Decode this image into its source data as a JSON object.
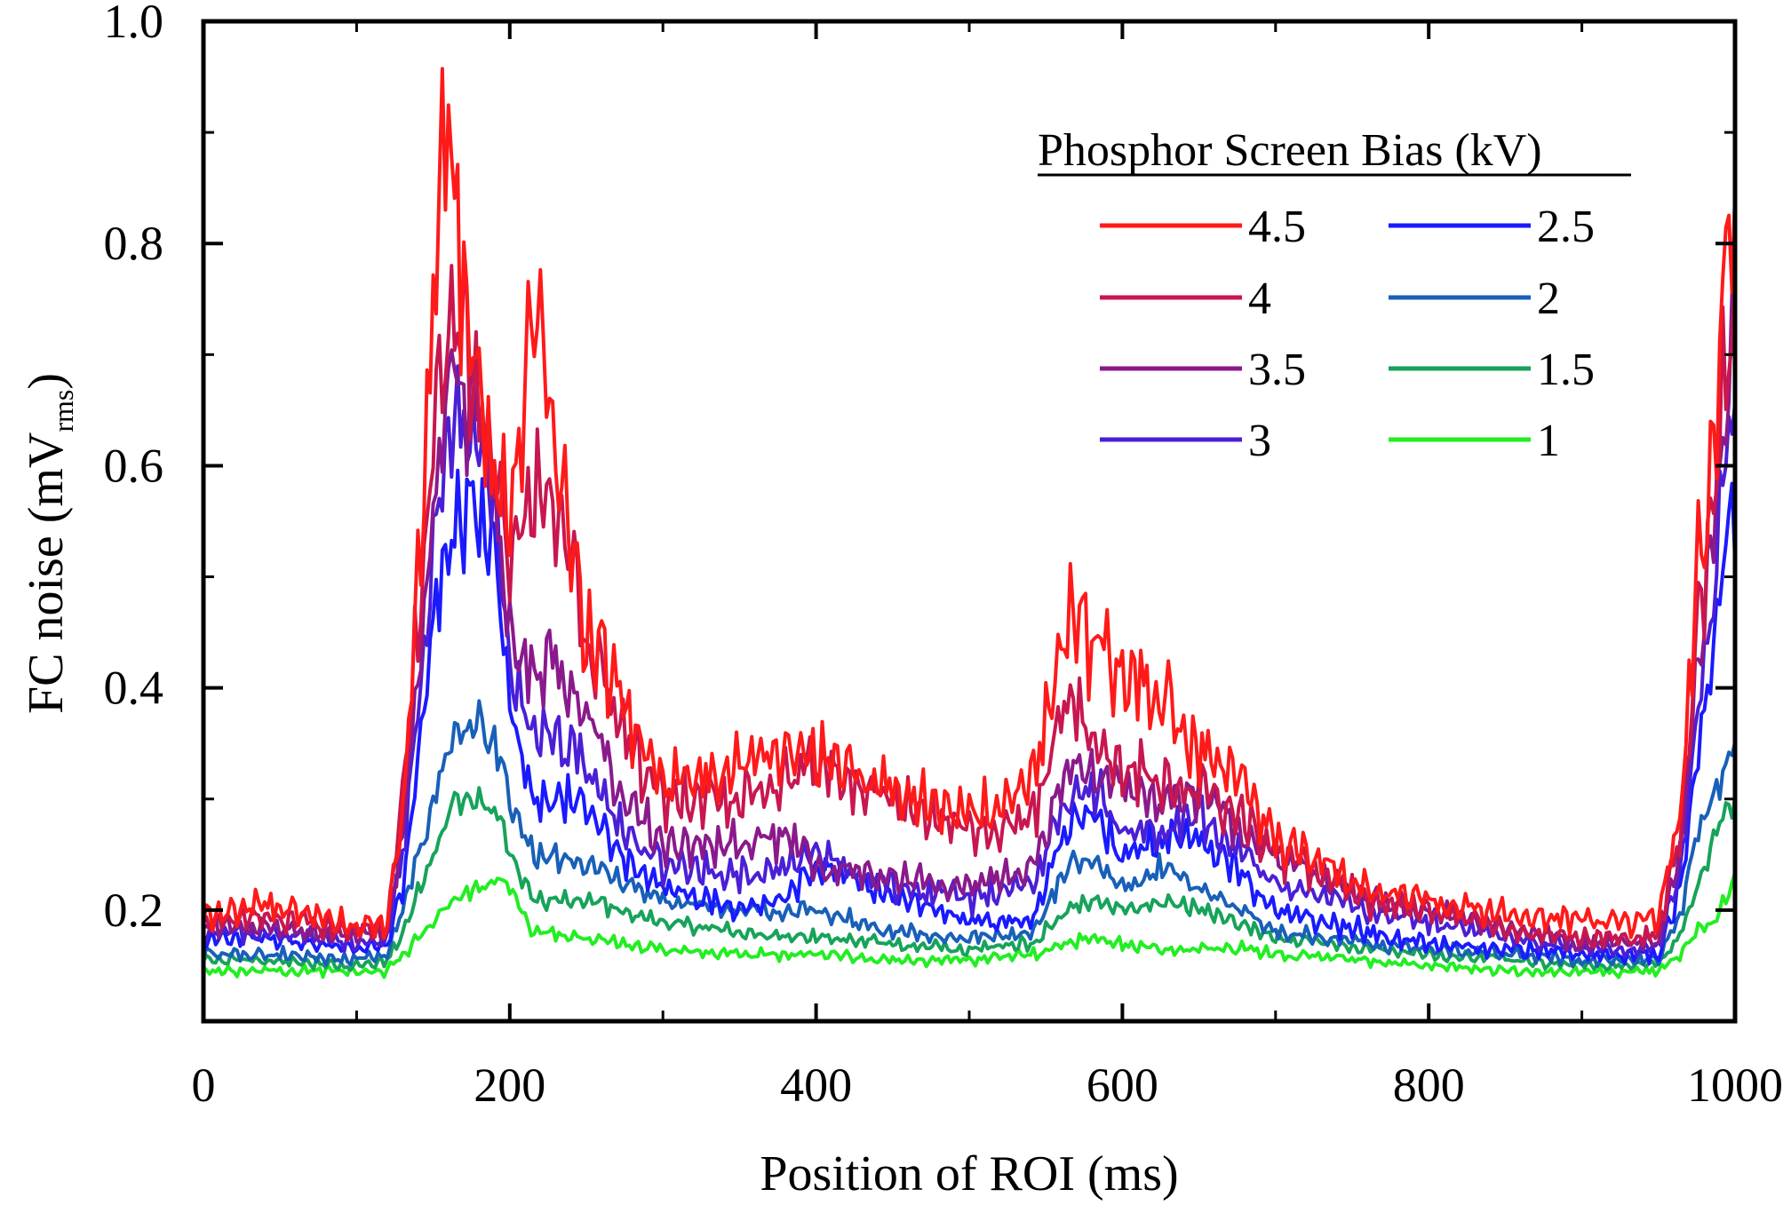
{
  "chart_data": {
    "type": "line",
    "title": "",
    "xlabel": "Position of ROI (ms)",
    "ylabel": {
      "main": "FC noise (mV",
      "sub": "rms",
      "close": ")"
    },
    "xlim": [
      0,
      1000
    ],
    "ylim": [
      0.1,
      1.0
    ],
    "x_ticks": [
      0,
      200,
      400,
      600,
      800,
      1000
    ],
    "x_tick_labels": [
      "0",
      "200",
      "400",
      "600",
      "800",
      "1000"
    ],
    "y_ticks": [
      0.2,
      0.4,
      0.6,
      0.8,
      1.0
    ],
    "y_tick_labels": [
      "0.2",
      "0.4",
      "0.6",
      "0.8",
      "1.0"
    ],
    "grid": false,
    "legend": {
      "title": "Phosphor Screen Bias (kV)",
      "placement": "top-right",
      "columns": 2
    },
    "series": [
      {
        "name": "4.5",
        "color": "#ff1a1a",
        "amp": 1.0,
        "base": [
          [
            0,
            0.195
          ],
          [
            40,
            0.205
          ],
          [
            100,
            0.185
          ],
          [
            120,
            0.19
          ],
          [
            130,
            0.28
          ],
          [
            145,
            0.62
          ],
          [
            158,
            0.93
          ],
          [
            172,
            0.74
          ],
          [
            185,
            0.6
          ],
          [
            200,
            0.54
          ],
          [
            215,
            0.77
          ],
          [
            230,
            0.6
          ],
          [
            250,
            0.45
          ],
          [
            270,
            0.4
          ],
          [
            300,
            0.31
          ],
          [
            350,
            0.33
          ],
          [
            400,
            0.34
          ],
          [
            450,
            0.31
          ],
          [
            500,
            0.28
          ],
          [
            540,
            0.31
          ],
          [
            565,
            0.46
          ],
          [
            580,
            0.45
          ],
          [
            600,
            0.42
          ],
          [
            625,
            0.4
          ],
          [
            650,
            0.34
          ],
          [
            680,
            0.32
          ],
          [
            700,
            0.26
          ],
          [
            760,
            0.22
          ],
          [
            800,
            0.21
          ],
          [
            860,
            0.195
          ],
          [
            900,
            0.19
          ],
          [
            950,
            0.19
          ],
          [
            965,
            0.3
          ],
          [
            975,
            0.5
          ],
          [
            985,
            0.6
          ],
          [
            995,
            0.8
          ],
          [
            1000,
            0.8
          ]
        ]
      },
      {
        "name": "4",
        "color": "#c8174f",
        "amp": 0.9,
        "base": [
          [
            0,
            0.19
          ],
          [
            40,
            0.195
          ],
          [
            100,
            0.18
          ],
          [
            120,
            0.19
          ],
          [
            130,
            0.3
          ],
          [
            150,
            0.62
          ],
          [
            160,
            0.72
          ],
          [
            172,
            0.72
          ],
          [
            185,
            0.62
          ],
          [
            200,
            0.52
          ],
          [
            215,
            0.58
          ],
          [
            230,
            0.56
          ],
          [
            250,
            0.45
          ],
          [
            270,
            0.37
          ],
          [
            300,
            0.3
          ],
          [
            350,
            0.3
          ],
          [
            400,
            0.33
          ],
          [
            450,
            0.3
          ],
          [
            500,
            0.27
          ],
          [
            540,
            0.28
          ],
          [
            565,
            0.39
          ],
          [
            580,
            0.36
          ],
          [
            600,
            0.33
          ],
          [
            625,
            0.32
          ],
          [
            650,
            0.31
          ],
          [
            680,
            0.28
          ],
          [
            700,
            0.25
          ],
          [
            760,
            0.21
          ],
          [
            800,
            0.2
          ],
          [
            860,
            0.18
          ],
          [
            900,
            0.175
          ],
          [
            950,
            0.175
          ],
          [
            965,
            0.28
          ],
          [
            975,
            0.45
          ],
          [
            985,
            0.55
          ],
          [
            995,
            0.7
          ],
          [
            1000,
            0.72
          ]
        ]
      },
      {
        "name": "3.5",
        "color": "#8a1a8c",
        "amp": 0.85,
        "base": [
          [
            0,
            0.185
          ],
          [
            40,
            0.185
          ],
          [
            100,
            0.175
          ],
          [
            120,
            0.18
          ],
          [
            130,
            0.27
          ],
          [
            150,
            0.56
          ],
          [
            162,
            0.68
          ],
          [
            175,
            0.66
          ],
          [
            190,
            0.58
          ],
          [
            200,
            0.45
          ],
          [
            215,
            0.42
          ],
          [
            230,
            0.42
          ],
          [
            250,
            0.38
          ],
          [
            270,
            0.31
          ],
          [
            300,
            0.26
          ],
          [
            350,
            0.26
          ],
          [
            380,
            0.27
          ],
          [
            400,
            0.24
          ],
          [
            450,
            0.23
          ],
          [
            500,
            0.22
          ],
          [
            540,
            0.24
          ],
          [
            565,
            0.33
          ],
          [
            580,
            0.33
          ],
          [
            600,
            0.31
          ],
          [
            625,
            0.3
          ],
          [
            650,
            0.31
          ],
          [
            680,
            0.27
          ],
          [
            700,
            0.25
          ],
          [
            760,
            0.21
          ],
          [
            800,
            0.2
          ],
          [
            860,
            0.18
          ],
          [
            900,
            0.17
          ],
          [
            950,
            0.17
          ],
          [
            965,
            0.26
          ],
          [
            975,
            0.42
          ],
          [
            985,
            0.52
          ],
          [
            995,
            0.68
          ],
          [
            1000,
            0.7
          ]
        ]
      },
      {
        "name": "3",
        "color": "#4a1fd6",
        "amp": 0.8,
        "base": [
          [
            0,
            0.18
          ],
          [
            40,
            0.18
          ],
          [
            100,
            0.17
          ],
          [
            120,
            0.175
          ],
          [
            130,
            0.25
          ],
          [
            150,
            0.52
          ],
          [
            162,
            0.64
          ],
          [
            175,
            0.63
          ],
          [
            190,
            0.56
          ],
          [
            200,
            0.42
          ],
          [
            215,
            0.36
          ],
          [
            230,
            0.36
          ],
          [
            250,
            0.33
          ],
          [
            270,
            0.28
          ],
          [
            300,
            0.24
          ],
          [
            350,
            0.23
          ],
          [
            380,
            0.24
          ],
          [
            400,
            0.25
          ],
          [
            450,
            0.22
          ],
          [
            500,
            0.21
          ],
          [
            540,
            0.22
          ],
          [
            565,
            0.3
          ],
          [
            580,
            0.31
          ],
          [
            600,
            0.27
          ],
          [
            625,
            0.27
          ],
          [
            645,
            0.29
          ],
          [
            680,
            0.25
          ],
          [
            700,
            0.22
          ],
          [
            760,
            0.2
          ],
          [
            800,
            0.19
          ],
          [
            860,
            0.175
          ],
          [
            900,
            0.165
          ],
          [
            950,
            0.165
          ],
          [
            965,
            0.24
          ],
          [
            975,
            0.38
          ],
          [
            985,
            0.48
          ],
          [
            995,
            0.62
          ],
          [
            1000,
            0.64
          ]
        ]
      },
      {
        "name": "2.5",
        "color": "#1a1aff",
        "amp": 0.75,
        "base": [
          [
            0,
            0.175
          ],
          [
            40,
            0.175
          ],
          [
            100,
            0.165
          ],
          [
            120,
            0.17
          ],
          [
            130,
            0.22
          ],
          [
            150,
            0.45
          ],
          [
            162,
            0.55
          ],
          [
            175,
            0.56
          ],
          [
            190,
            0.52
          ],
          [
            200,
            0.38
          ],
          [
            215,
            0.3
          ],
          [
            230,
            0.3
          ],
          [
            250,
            0.3
          ],
          [
            270,
            0.25
          ],
          [
            300,
            0.22
          ],
          [
            350,
            0.2
          ],
          [
            380,
            0.21
          ],
          [
            400,
            0.24
          ],
          [
            450,
            0.21
          ],
          [
            500,
            0.19
          ],
          [
            540,
            0.19
          ],
          [
            565,
            0.28
          ],
          [
            580,
            0.29
          ],
          [
            600,
            0.25
          ],
          [
            625,
            0.26
          ],
          [
            645,
            0.27
          ],
          [
            680,
            0.23
          ],
          [
            700,
            0.2
          ],
          [
            760,
            0.18
          ],
          [
            800,
            0.17
          ],
          [
            860,
            0.165
          ],
          [
            900,
            0.16
          ],
          [
            950,
            0.16
          ],
          [
            965,
            0.22
          ],
          [
            975,
            0.33
          ],
          [
            985,
            0.43
          ],
          [
            995,
            0.55
          ],
          [
            1000,
            0.56
          ]
        ]
      },
      {
        "name": "2",
        "color": "#1860b8",
        "amp": 0.5,
        "base": [
          [
            0,
            0.16
          ],
          [
            40,
            0.16
          ],
          [
            100,
            0.155
          ],
          [
            120,
            0.16
          ],
          [
            130,
            0.2
          ],
          [
            150,
            0.3
          ],
          [
            165,
            0.36
          ],
          [
            180,
            0.37
          ],
          [
            195,
            0.34
          ],
          [
            200,
            0.3
          ],
          [
            215,
            0.25
          ],
          [
            250,
            0.24
          ],
          [
            300,
            0.21
          ],
          [
            350,
            0.2
          ],
          [
            400,
            0.2
          ],
          [
            450,
            0.18
          ],
          [
            500,
            0.175
          ],
          [
            540,
            0.18
          ],
          [
            565,
            0.24
          ],
          [
            580,
            0.25
          ],
          [
            600,
            0.22
          ],
          [
            630,
            0.24
          ],
          [
            650,
            0.22
          ],
          [
            680,
            0.2
          ],
          [
            700,
            0.18
          ],
          [
            760,
            0.17
          ],
          [
            800,
            0.165
          ],
          [
            860,
            0.16
          ],
          [
            900,
            0.155
          ],
          [
            950,
            0.155
          ],
          [
            965,
            0.2
          ],
          [
            975,
            0.27
          ],
          [
            985,
            0.3
          ],
          [
            995,
            0.33
          ],
          [
            1000,
            0.35
          ]
        ]
      },
      {
        "name": "1.5",
        "color": "#17a35a",
        "amp": 0.38,
        "base": [
          [
            0,
            0.155
          ],
          [
            40,
            0.155
          ],
          [
            100,
            0.15
          ],
          [
            120,
            0.155
          ],
          [
            130,
            0.18
          ],
          [
            150,
            0.25
          ],
          [
            165,
            0.3
          ],
          [
            180,
            0.3
          ],
          [
            195,
            0.28
          ],
          [
            200,
            0.25
          ],
          [
            215,
            0.21
          ],
          [
            250,
            0.21
          ],
          [
            300,
            0.19
          ],
          [
            350,
            0.18
          ],
          [
            400,
            0.175
          ],
          [
            450,
            0.17
          ],
          [
            500,
            0.165
          ],
          [
            540,
            0.17
          ],
          [
            565,
            0.2
          ],
          [
            580,
            0.21
          ],
          [
            600,
            0.2
          ],
          [
            630,
            0.21
          ],
          [
            650,
            0.2
          ],
          [
            680,
            0.185
          ],
          [
            700,
            0.175
          ],
          [
            760,
            0.165
          ],
          [
            800,
            0.16
          ],
          [
            860,
            0.155
          ],
          [
            900,
            0.15
          ],
          [
            950,
            0.15
          ],
          [
            965,
            0.18
          ],
          [
            975,
            0.22
          ],
          [
            985,
            0.26
          ],
          [
            995,
            0.29
          ],
          [
            1000,
            0.3
          ]
        ]
      },
      {
        "name": "1",
        "color": "#22ee22",
        "amp": 0.28,
        "base": [
          [
            0,
            0.145
          ],
          [
            40,
            0.145
          ],
          [
            100,
            0.145
          ],
          [
            120,
            0.145
          ],
          [
            130,
            0.16
          ],
          [
            150,
            0.19
          ],
          [
            165,
            0.21
          ],
          [
            180,
            0.22
          ],
          [
            195,
            0.23
          ],
          [
            200,
            0.22
          ],
          [
            215,
            0.18
          ],
          [
            250,
            0.175
          ],
          [
            300,
            0.165
          ],
          [
            350,
            0.16
          ],
          [
            400,
            0.16
          ],
          [
            450,
            0.155
          ],
          [
            500,
            0.155
          ],
          [
            540,
            0.16
          ],
          [
            565,
            0.17
          ],
          [
            580,
            0.175
          ],
          [
            600,
            0.17
          ],
          [
            630,
            0.165
          ],
          [
            650,
            0.165
          ],
          [
            680,
            0.165
          ],
          [
            700,
            0.16
          ],
          [
            760,
            0.155
          ],
          [
            800,
            0.15
          ],
          [
            860,
            0.145
          ],
          [
            900,
            0.145
          ],
          [
            950,
            0.145
          ],
          [
            965,
            0.16
          ],
          [
            975,
            0.18
          ],
          [
            985,
            0.19
          ],
          [
            995,
            0.21
          ],
          [
            1000,
            0.23
          ]
        ]
      }
    ]
  }
}
